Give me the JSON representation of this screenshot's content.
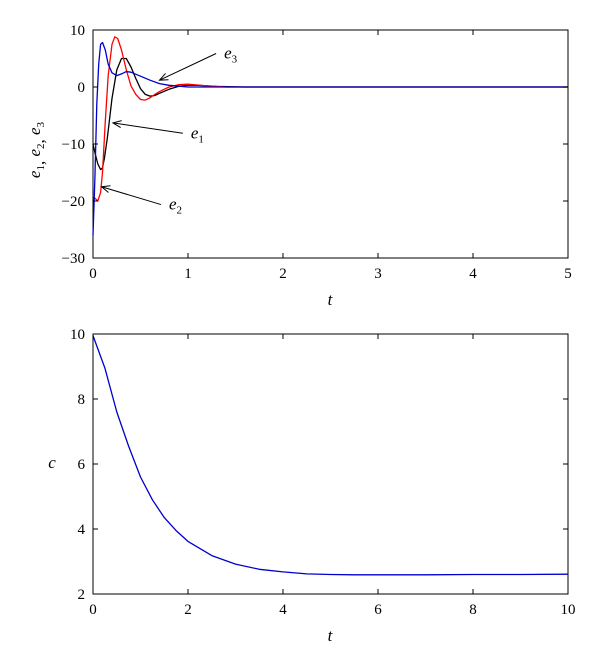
{
  "chart_data": [
    {
      "type": "line",
      "title": "",
      "xlabel": "t",
      "ylabel": {
        "base": "e",
        "subs": [
          "1",
          "2",
          "3"
        ]
      },
      "xlim": [
        0,
        5
      ],
      "ylim": [
        -30,
        10
      ],
      "xticks": [
        "0",
        "1",
        "2",
        "3",
        "4",
        "5"
      ],
      "yticks": [
        "10",
        "0",
        "−10",
        "−20",
        "−30"
      ],
      "grid": false,
      "series": [
        {
          "name": "e1",
          "color": "#000000",
          "x": [
            0,
            0.02,
            0.05,
            0.08,
            0.1,
            0.12,
            0.15,
            0.2,
            0.25,
            0.3,
            0.35,
            0.4,
            0.45,
            0.5,
            0.55,
            0.6,
            0.65,
            0.7,
            0.8,
            0.9,
            1.0,
            1.1,
            1.3,
            1.6,
            2.0,
            3.0,
            5.0
          ],
          "y": [
            -10,
            -11.5,
            -13.5,
            -14.5,
            -14.2,
            -12.5,
            -9,
            -2,
            3,
            5,
            5,
            3.5,
            1.5,
            -0.3,
            -1.3,
            -1.6,
            -1.5,
            -1.1,
            -0.4,
            0.1,
            0.3,
            0.3,
            0.1,
            0,
            0,
            0,
            0
          ]
        },
        {
          "name": "e2",
          "color": "#ff0000",
          "x": [
            0,
            0.02,
            0.05,
            0.08,
            0.1,
            0.13,
            0.16,
            0.2,
            0.23,
            0.26,
            0.3,
            0.35,
            0.4,
            0.45,
            0.5,
            0.55,
            0.6,
            0.65,
            0.7,
            0.8,
            0.9,
            1.0,
            1.1,
            1.2,
            1.4,
            1.7,
            2.0,
            3.0,
            5.0
          ],
          "y": [
            -19,
            -19.5,
            -20,
            -18.5,
            -15,
            -6,
            2,
            7.5,
            8.8,
            8.5,
            6.5,
            3,
            0.2,
            -1.3,
            -2.2,
            -2.3,
            -1.9,
            -1.3,
            -0.8,
            0,
            0.4,
            0.5,
            0.35,
            0.2,
            0,
            0,
            0,
            0,
            0
          ]
        },
        {
          "name": "e3",
          "color": "#0000cc",
          "x": [
            0,
            0.02,
            0.04,
            0.06,
            0.08,
            0.1,
            0.13,
            0.16,
            0.2,
            0.25,
            0.3,
            0.35,
            0.4,
            0.5,
            0.6,
            0.7,
            0.8,
            1.0,
            1.2,
            1.5,
            2.0,
            3.0,
            5.0
          ],
          "y": [
            -26,
            -16,
            -3,
            4,
            7.5,
            7.8,
            6.5,
            4,
            2.5,
            2,
            2.3,
            2.7,
            2.6,
            1.9,
            1.2,
            0.6,
            0.3,
            0,
            0,
            0,
            0,
            0,
            0
          ]
        }
      ],
      "annotations": [
        {
          "series": "e3",
          "label_base": "e",
          "label_sub": "3",
          "text_at": [
            1.38,
            5.0
          ],
          "arrow_to": [
            0.7,
            1.2
          ]
        },
        {
          "series": "e1",
          "label_base": "e",
          "label_sub": "1",
          "text_at": [
            1.03,
            -9.0
          ],
          "arrow_to": [
            0.21,
            -6.3
          ]
        },
        {
          "series": "e2",
          "label_base": "e",
          "label_sub": "2",
          "text_at": [
            0.8,
            -21.5
          ],
          "arrow_to": [
            0.09,
            -17.5
          ]
        }
      ]
    },
    {
      "type": "line",
      "title": "",
      "xlabel": "t",
      "ylabel": "c",
      "xlim": [
        0,
        10
      ],
      "ylim": [
        2,
        10
      ],
      "xticks": [
        "0",
        "2",
        "4",
        "6",
        "8",
        "10"
      ],
      "yticks": [
        "10",
        "8",
        "6",
        "4",
        "2"
      ],
      "grid": false,
      "series": [
        {
          "name": "c",
          "color": "#0000cc",
          "x": [
            0,
            0.25,
            0.5,
            0.75,
            1.0,
            1.25,
            1.5,
            1.75,
            2.0,
            2.5,
            3.0,
            3.5,
            4.0,
            4.5,
            5.0,
            5.5,
            6.0,
            7.0,
            8.0,
            9.0,
            10.0
          ],
          "y": [
            9.95,
            8.95,
            7.6,
            6.55,
            5.6,
            4.9,
            4.35,
            3.95,
            3.62,
            3.18,
            2.92,
            2.76,
            2.68,
            2.62,
            2.6,
            2.59,
            2.59,
            2.59,
            2.6,
            2.6,
            2.61
          ]
        }
      ]
    }
  ]
}
